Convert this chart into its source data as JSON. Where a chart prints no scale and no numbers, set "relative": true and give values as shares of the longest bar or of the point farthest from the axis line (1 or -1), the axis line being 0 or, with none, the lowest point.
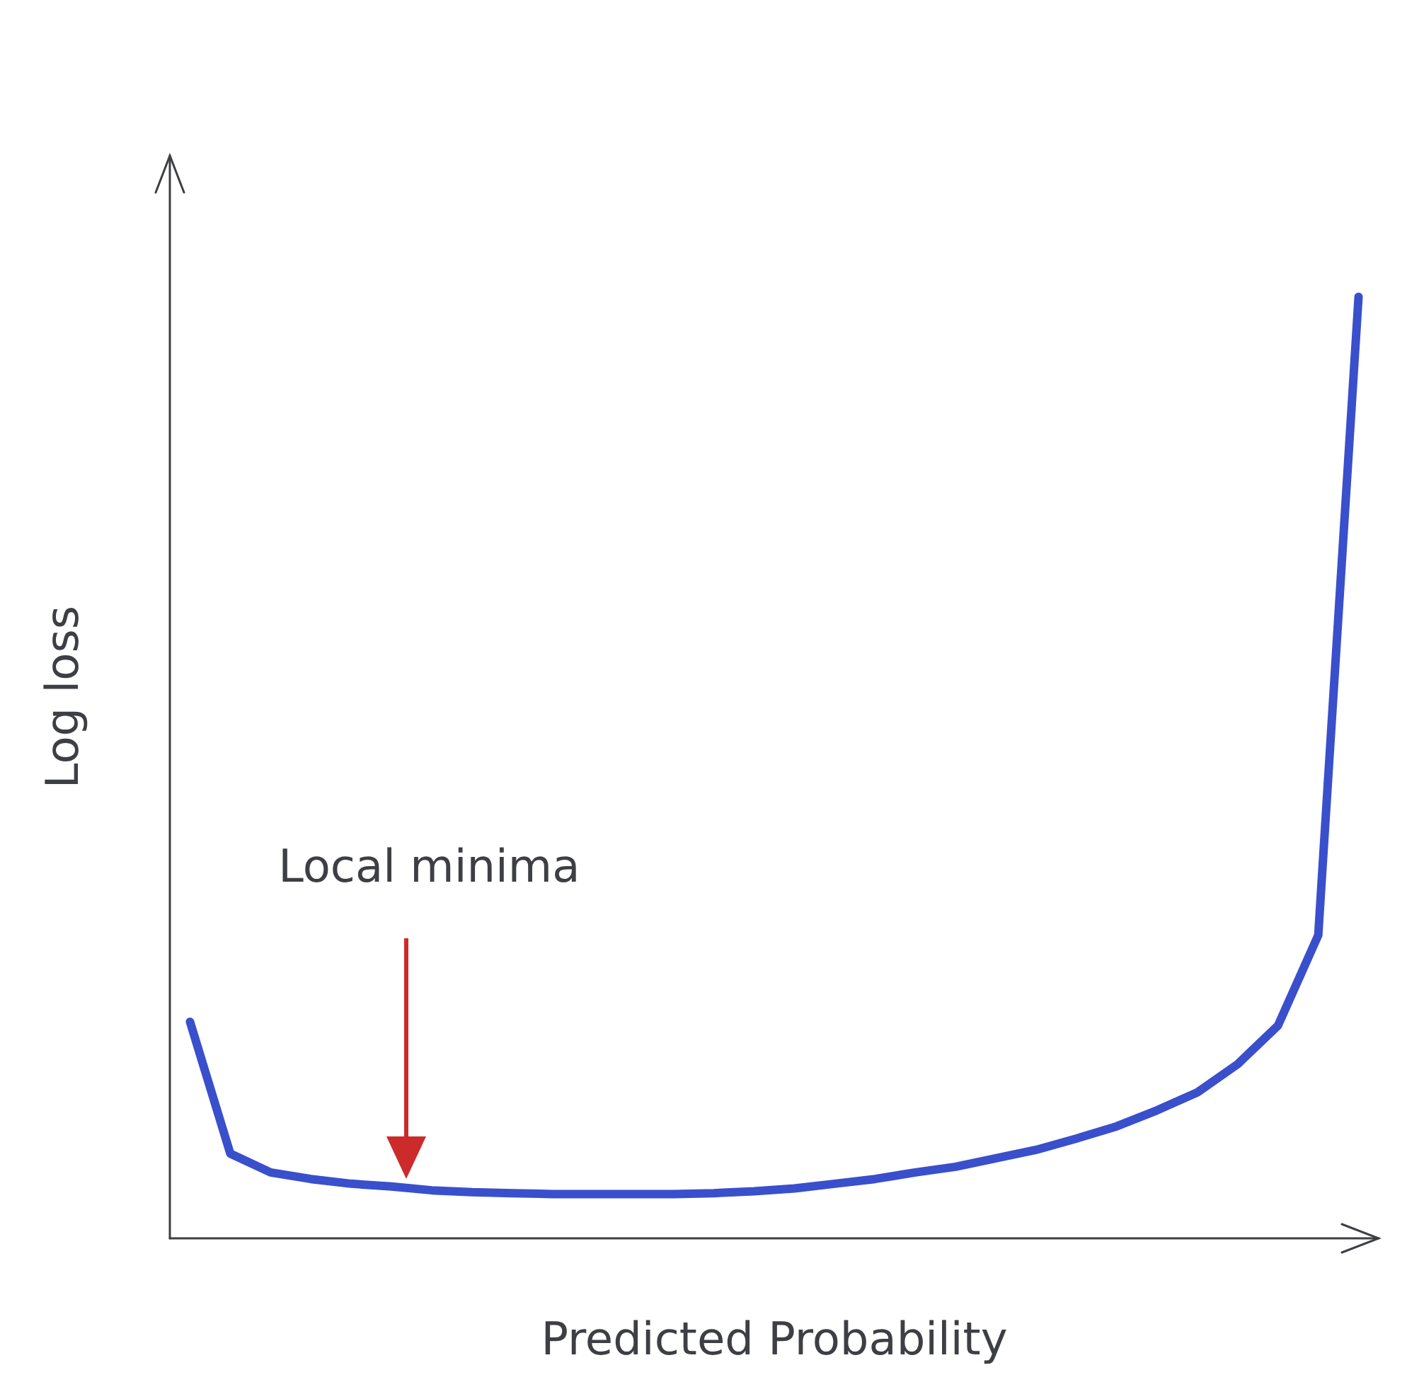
{
  "chart_data": {
    "type": "line",
    "relative": true,
    "xlabel": "Predicted Probability",
    "ylabel": "Log loss",
    "annotations": [
      "Local minima"
    ],
    "categories": [
      null,
      null,
      null,
      null,
      null,
      null,
      null,
      null,
      null,
      null,
      null,
      null,
      null,
      null,
      null,
      null,
      null,
      null,
      null,
      null,
      null,
      null,
      null,
      null,
      null,
      null,
      null,
      null,
      null,
      null
    ],
    "series": [
      {
        "color": "#3a4fcc",
        "values": [
          0.23,
          0.09,
          0.07,
          0.063,
          0.058,
          0.055,
          0.051,
          0.049,
          0.048,
          0.047,
          0.047,
          0.047,
          0.047,
          0.048,
          0.05,
          0.053,
          0.058,
          0.063,
          0.07,
          0.076,
          0.085,
          0.094,
          0.106,
          0.119,
          0.136,
          0.155,
          0.185,
          0.226,
          0.322,
          1.0
        ]
      }
    ],
    "marker": "none",
    "grid": false
  }
}
